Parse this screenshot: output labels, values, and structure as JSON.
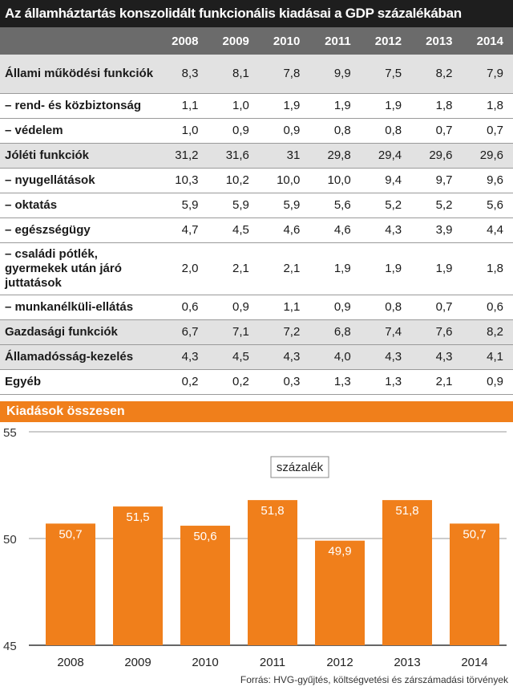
{
  "title": "Az államháztartás konszolidált funkcionális kiadásai a GDP százalékában",
  "table": {
    "years": [
      "2008",
      "2009",
      "2010",
      "2011",
      "2012",
      "2013",
      "2014"
    ],
    "rows": [
      {
        "label": "Állami működési funkciók",
        "values": [
          "8,3",
          "8,1",
          "7,8",
          "9,9",
          "7,5",
          "8,2",
          "7,9"
        ],
        "shaded": true,
        "height": 48
      },
      {
        "label": "– rend- és közbiztonság",
        "values": [
          "1,1",
          "1,0",
          "1,9",
          "1,9",
          "1,9",
          "1,8",
          "1,8"
        ],
        "shaded": false,
        "height": 31
      },
      {
        "label": "– védelem",
        "values": [
          "1,0",
          "0,9",
          "0,9",
          "0,8",
          "0,8",
          "0,7",
          "0,7"
        ],
        "shaded": false,
        "height": 31
      },
      {
        "label": "Jóléti funkciók",
        "values": [
          "31,2",
          "31,6",
          "31",
          "29,8",
          "29,4",
          "29,6",
          "29,6"
        ],
        "shaded": true,
        "height": 31
      },
      {
        "label": "– nyugellátások",
        "values": [
          "10,3",
          "10,2",
          "10,0",
          "10,0",
          "9,4",
          "9,7",
          "9,6"
        ],
        "shaded": false,
        "height": 31
      },
      {
        "label": "– oktatás",
        "values": [
          "5,9",
          "5,9",
          "5,9",
          "5,6",
          "5,2",
          "5,2",
          "5,6"
        ],
        "shaded": false,
        "height": 31
      },
      {
        "label": "– egészségügy",
        "values": [
          "4,7",
          "4,5",
          "4,6",
          "4,6",
          "4,3",
          "3,9",
          "4,4"
        ],
        "shaded": false,
        "height": 31
      },
      {
        "label": "– családi pótlék, gyermekek után járó juttatások",
        "values": [
          "2,0",
          "2,1",
          "2,1",
          "1,9",
          "1,9",
          "1,9",
          "1,8"
        ],
        "shaded": false,
        "height": 65
      },
      {
        "label": "– munkanélküli-ellátás",
        "values": [
          "0,6",
          "0,9",
          "1,1",
          "0,9",
          "0,8",
          "0,7",
          "0,6"
        ],
        "shaded": false,
        "height": 31
      },
      {
        "label": "Gazdasági funkciók",
        "values": [
          "6,7",
          "7,1",
          "7,2",
          "6,8",
          "7,4",
          "7,6",
          "8,2"
        ],
        "shaded": true,
        "height": 31
      },
      {
        "label": "Államadósság-kezelés",
        "values": [
          "4,3",
          "4,5",
          "4,3",
          "4,0",
          "4,3",
          "4,3",
          "4,1"
        ],
        "shaded": true,
        "height": 31
      },
      {
        "label": "Egyéb",
        "values": [
          "0,2",
          "0,2",
          "0,3",
          "1,3",
          "1,3",
          "2,1",
          "0,9"
        ],
        "shaded": false,
        "height": 31
      }
    ]
  },
  "section_title": "Kiadások összesen",
  "chart_data": {
    "type": "bar",
    "categories": [
      "2008",
      "2009",
      "2010",
      "2011",
      "2012",
      "2013",
      "2014"
    ],
    "values": [
      50.7,
      51.5,
      50.6,
      51.8,
      49.9,
      51.8,
      50.7
    ],
    "value_labels": [
      "50,7",
      "51,5",
      "50,6",
      "51,8",
      "49,9",
      "51,8",
      "50,7"
    ],
    "unit_label": "százalék",
    "ylim": [
      45,
      55
    ],
    "yticks": [
      45,
      50,
      55
    ],
    "grid": true,
    "bar_color": "#f07f1b"
  },
  "source": "Forrás: HVG-gyűjtés, költségvetési és zárszámadási törvények"
}
